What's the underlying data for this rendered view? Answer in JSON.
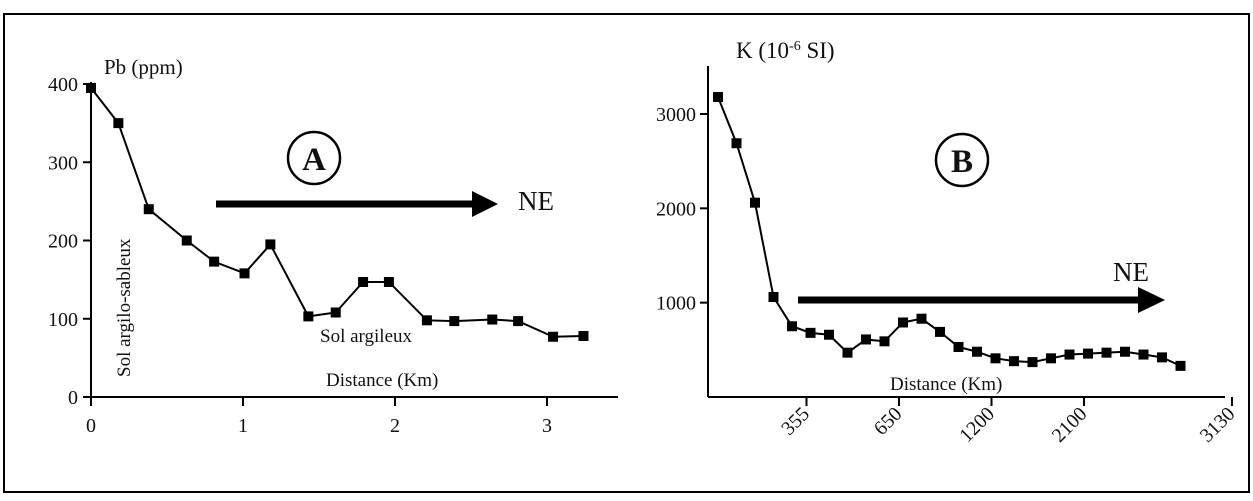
{
  "chart_data": [
    {
      "type": "line",
      "panel_label": "A",
      "ylabel": "Pb (ppm)",
      "xlabel": "Distance (Km)",
      "direction_label": "NE",
      "annotations": [
        "Sol argilo-sableux",
        "Sol argileux"
      ],
      "xlim": [
        0,
        3.5
      ],
      "ylim": [
        0,
        400
      ],
      "x_ticks": [
        "0",
        "1",
        "2",
        "3"
      ],
      "y_ticks": [
        "0",
        "100",
        "200",
        "300",
        "400"
      ],
      "x": [
        0,
        0.18,
        0.38,
        0.63,
        0.81,
        1.01,
        1.18,
        1.43,
        1.61,
        1.79,
        1.96,
        2.21,
        2.39,
        2.64,
        2.81,
        3.04,
        3.24
      ],
      "y": [
        395,
        350,
        240,
        200,
        173,
        158,
        195,
        103,
        108,
        147,
        147,
        98,
        97,
        99,
        97,
        77,
        78
      ]
    },
    {
      "type": "line",
      "panel_label": "B",
      "ylabel": "K (10-6 SI)",
      "ylabel_base": "K (10",
      "ylabel_sup": "-6",
      "ylabel_tail": " SI)",
      "xlabel": "Distance (Km)",
      "direction_label": "NE",
      "ylim": [
        0,
        3500
      ],
      "y_ticks": [
        "1000",
        "2000",
        "3000"
      ],
      "x_tick_labels": [
        "355",
        "650",
        "1200",
        "2100",
        "3130"
      ],
      "x_tick_index": [
        5,
        10,
        15,
        20,
        28
      ],
      "y": [
        3180,
        2690,
        2060,
        1060,
        750,
        680,
        660,
        470,
        610,
        590,
        790,
        830,
        690,
        530,
        480,
        410,
        380,
        370,
        410,
        450,
        460,
        470,
        480,
        450,
        420,
        330
      ]
    }
  ]
}
